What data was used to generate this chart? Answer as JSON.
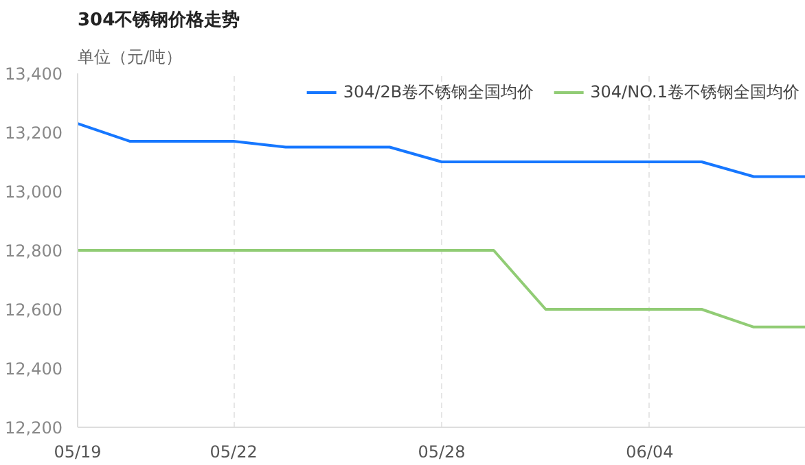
{
  "chart_data": {
    "type": "line",
    "title": "304不锈钢价格走势",
    "ylabel": "单位（元/吨）",
    "categories": [
      "05/19",
      null,
      null,
      "05/22",
      null,
      null,
      null,
      "05/28",
      null,
      null,
      null,
      "06/04",
      null,
      null,
      null
    ],
    "series": [
      {
        "name": "304/2B卷不锈钢全国均价",
        "color": "#1677ff",
        "values": [
          13230,
          13170,
          13170,
          13170,
          13150,
          13150,
          13150,
          13100,
          13100,
          13100,
          13100,
          13100,
          13100,
          13050,
          13050
        ]
      },
      {
        "name": "304/NO.1卷不锈钢全国均价",
        "color": "#91cc75",
        "values": [
          12800,
          12800,
          12800,
          12800,
          12800,
          12800,
          12800,
          12800,
          12800,
          12600,
          12600,
          12600,
          12600,
          12540,
          12540
        ]
      }
    ],
    "ylim": [
      12200,
      13400
    ],
    "yticks": [
      {
        "value": 12200,
        "label": "12,200"
      },
      {
        "value": 12400,
        "label": "12,400"
      },
      {
        "value": 12600,
        "label": "12,600"
      },
      {
        "value": 12800,
        "label": "12,800"
      },
      {
        "value": 13000,
        "label": "13,000"
      },
      {
        "value": 13200,
        "label": "13,200"
      },
      {
        "value": 13400,
        "label": "13,400"
      }
    ],
    "grid": "x",
    "legend": "top right",
    "marker": "none",
    "line_style": "solid"
  }
}
